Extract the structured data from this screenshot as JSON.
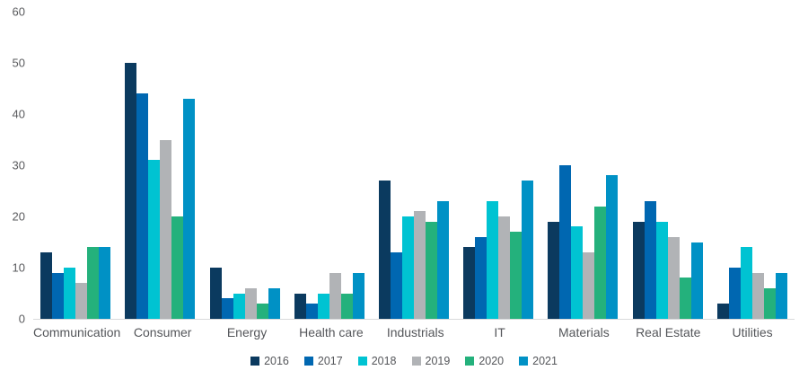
{
  "chart_data": {
    "type": "bar",
    "title": "",
    "xlabel": "",
    "ylabel": "",
    "categories": [
      "Communication",
      "Consumer",
      "Energy",
      "Health care",
      "Industrials",
      "IT",
      "Materials",
      "Real Estate",
      "Utilities"
    ],
    "series": [
      {
        "name": "2016",
        "color": "#0b3a5f",
        "values": [
          13,
          50,
          10,
          5,
          27,
          14,
          19,
          19,
          3
        ]
      },
      {
        "name": "2017",
        "color": "#0067b1",
        "values": [
          9,
          44,
          4,
          3,
          13,
          16,
          30,
          23,
          10
        ]
      },
      {
        "name": "2018",
        "color": "#00c3d2",
        "values": [
          10,
          31,
          5,
          5,
          20,
          23,
          18,
          19,
          14
        ]
      },
      {
        "name": "2019",
        "color": "#b1b3b6",
        "values": [
          7,
          35,
          6,
          9,
          21,
          20,
          13,
          16,
          9
        ]
      },
      {
        "name": "2020",
        "color": "#24b17c",
        "values": [
          14,
          20,
          3,
          5,
          19,
          17,
          22,
          8,
          6
        ]
      },
      {
        "name": "2021",
        "color": "#0091c5",
        "values": [
          14,
          43,
          6,
          9,
          23,
          27,
          28,
          15,
          9
        ]
      }
    ],
    "ylim": [
      0,
      60
    ],
    "yticks": [
      0,
      10,
      20,
      30,
      40,
      50,
      60
    ],
    "grid": false,
    "legend_position": "bottom"
  },
  "style": {
    "background": "#ffffff",
    "axis_line_color": "#d9dadb",
    "tick_label_color": "#5a5b5e",
    "category_label_color": "#54565a",
    "legend_label_color": "#54565a"
  }
}
